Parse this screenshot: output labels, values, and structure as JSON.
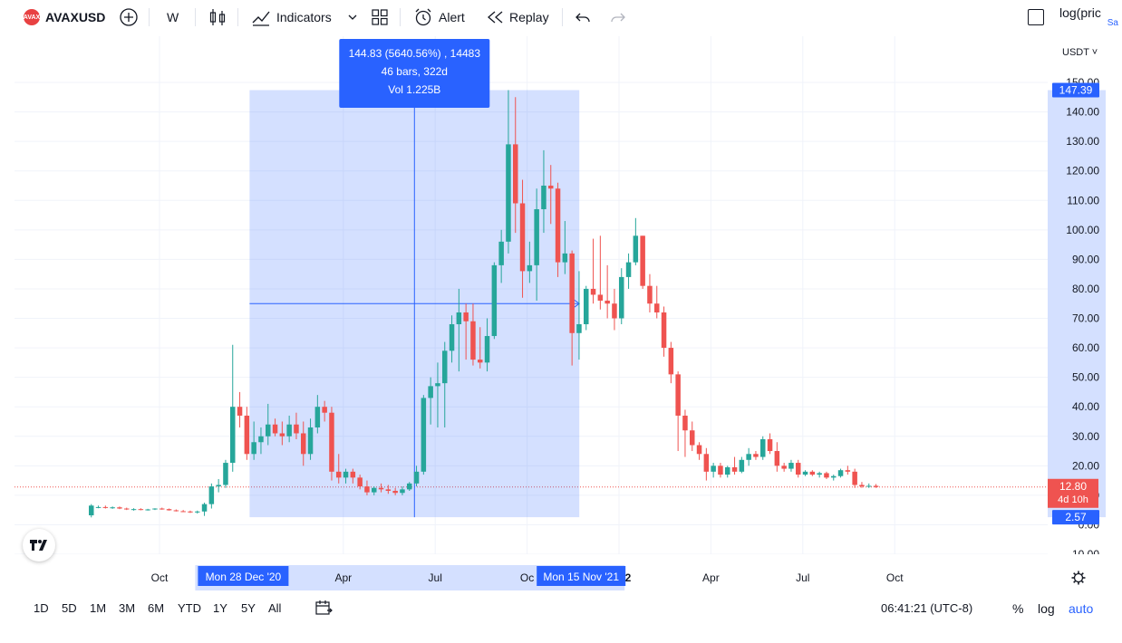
{
  "toolbar": {
    "symbol": "AVAXUSD",
    "symbol_badge": "AVAX",
    "interval": "W",
    "indicators_label": "Indicators",
    "alert_label": "Alert",
    "replay_label": "Replay",
    "log_label": "log(pric",
    "log_sub": "Sa"
  },
  "price_scale": {
    "currency": "USDT",
    "ticks": [
      "150.00",
      "140.00",
      "130.00",
      "120.00",
      "110.00",
      "100.00",
      "90.00",
      "80.00",
      "70.00",
      "60.00",
      "50.00",
      "40.00",
      "30.00",
      "20.00",
      "10.00",
      "0.00",
      "-10.00"
    ],
    "tick_values": [
      150,
      140,
      130,
      120,
      110,
      100,
      90,
      80,
      70,
      60,
      50,
      40,
      30,
      20,
      10,
      0,
      -10
    ],
    "range_top_label": "147.39",
    "range_bottom_label": "2.57",
    "current_price_label": "12.80",
    "countdown_label": "4d 10h"
  },
  "time_axis": {
    "labels": [
      {
        "text": "Oct",
        "t": 10
      },
      {
        "text": "Apr",
        "t": 36
      },
      {
        "text": "Jul",
        "t": 49
      },
      {
        "text": "Oc",
        "t": 62
      },
      {
        "text": "2022",
        "t": 75
      },
      {
        "text": "Apr",
        "t": 88
      },
      {
        "text": "Jul",
        "t": 101
      },
      {
        "text": "Oct",
        "t": 114
      }
    ],
    "range_start_label": "Mon 28 Dec '20",
    "range_end_label": "Mon 15 Nov '21"
  },
  "measurement": {
    "line1": "144.83 (5640.56%) , 14483",
    "line2": "46 bars, 322d",
    "line3": "Vol 1.225B",
    "start_price": 2.57,
    "end_price": 147.39,
    "start_bar": 23,
    "end_bar": 69,
    "crosshair_price": 75
  },
  "bottom": {
    "ranges": [
      "1D",
      "5D",
      "1M",
      "3M",
      "6M",
      "YTD",
      "1Y",
      "5Y",
      "All"
    ],
    "clock": "06:41:21 (UTC-8)",
    "percent_label": "%",
    "log_label": "log",
    "auto_label": "auto"
  },
  "colors": {
    "up": "#26a69a",
    "down": "#ef5350",
    "selection": "#2962ff",
    "text": "#131722",
    "grid": "#f0f3fa"
  },
  "chart_data": {
    "type": "candlestick",
    "interval": "W",
    "symbol": "AVAXUSD",
    "y_range": [
      -10,
      150
    ],
    "candles": [
      {
        "o": 3.2,
        "h": 7.0,
        "l": 2.5,
        "c": 6.5
      },
      {
        "o": 6.0,
        "h": 6.5,
        "l": 5.6,
        "c": 6.0
      },
      {
        "o": 6.0,
        "h": 6.5,
        "l": 5.5,
        "c": 5.8
      },
      {
        "o": 5.8,
        "h": 6.2,
        "l": 5.4,
        "c": 5.9
      },
      {
        "o": 5.9,
        "h": 6.2,
        "l": 5.3,
        "c": 5.5
      },
      {
        "o": 5.5,
        "h": 5.8,
        "l": 5.0,
        "c": 5.2
      },
      {
        "o": 5.2,
        "h": 5.6,
        "l": 4.8,
        "c": 5.3
      },
      {
        "o": 5.3,
        "h": 5.6,
        "l": 4.9,
        "c": 5.0
      },
      {
        "o": 5.0,
        "h": 5.4,
        "l": 4.8,
        "c": 5.2
      },
      {
        "o": 5.2,
        "h": 5.6,
        "l": 5.0,
        "c": 5.5
      },
      {
        "o": 5.5,
        "h": 5.8,
        "l": 5.1,
        "c": 5.3
      },
      {
        "o": 5.3,
        "h": 5.5,
        "l": 4.8,
        "c": 4.9
      },
      {
        "o": 4.9,
        "h": 5.2,
        "l": 4.5,
        "c": 4.6
      },
      {
        "o": 4.6,
        "h": 5.0,
        "l": 4.3,
        "c": 4.5
      },
      {
        "o": 4.5,
        "h": 4.8,
        "l": 4.0,
        "c": 4.2
      },
      {
        "o": 4.2,
        "h": 4.8,
        "l": 3.8,
        "c": 4.5
      },
      {
        "o": 4.5,
        "h": 7.5,
        "l": 3.0,
        "c": 7.0
      },
      {
        "o": 7.0,
        "h": 14.0,
        "l": 5.5,
        "c": 13.0
      },
      {
        "o": 13.0,
        "h": 15.5,
        "l": 11.0,
        "c": 13.5
      },
      {
        "o": 13.5,
        "h": 22.0,
        "l": 12.5,
        "c": 21.0
      },
      {
        "o": 21.0,
        "h": 61.0,
        "l": 18.0,
        "c": 40.0
      },
      {
        "o": 40.0,
        "h": 45.0,
        "l": 33.0,
        "c": 37.0
      },
      {
        "o": 37.0,
        "h": 40.0,
        "l": 22.0,
        "c": 24.0
      },
      {
        "o": 24.0,
        "h": 35.0,
        "l": 22.0,
        "c": 28.0
      },
      {
        "o": 28.0,
        "h": 33.0,
        "l": 24.0,
        "c": 30.0
      },
      {
        "o": 30.0,
        "h": 41.0,
        "l": 27.0,
        "c": 34.0
      },
      {
        "o": 34.0,
        "h": 36.0,
        "l": 30.0,
        "c": 31.0
      },
      {
        "o": 31.0,
        "h": 35.0,
        "l": 27.0,
        "c": 30.0
      },
      {
        "o": 30.0,
        "h": 37.0,
        "l": 28.0,
        "c": 34.0
      },
      {
        "o": 34.0,
        "h": 38.0,
        "l": 29.0,
        "c": 31.0
      },
      {
        "o": 31.0,
        "h": 35.0,
        "l": 20.0,
        "c": 24.0
      },
      {
        "o": 24.0,
        "h": 36.0,
        "l": 22.0,
        "c": 33.0
      },
      {
        "o": 33.0,
        "h": 44.0,
        "l": 31.0,
        "c": 40.0
      },
      {
        "o": 40.0,
        "h": 42.0,
        "l": 35.0,
        "c": 38.0
      },
      {
        "o": 38.0,
        "h": 40.0,
        "l": 15.0,
        "c": 18.0
      },
      {
        "o": 18.0,
        "h": 24.0,
        "l": 14.0,
        "c": 16.0
      },
      {
        "o": 16.0,
        "h": 19.0,
        "l": 14.0,
        "c": 18.0
      },
      {
        "o": 18.0,
        "h": 19.0,
        "l": 14.0,
        "c": 16.0
      },
      {
        "o": 16.0,
        "h": 17.0,
        "l": 12.0,
        "c": 13.0
      },
      {
        "o": 13.0,
        "h": 15.0,
        "l": 10.0,
        "c": 11.0
      },
      {
        "o": 11.0,
        "h": 13.0,
        "l": 10.0,
        "c": 12.5
      },
      {
        "o": 12.5,
        "h": 14.0,
        "l": 11.0,
        "c": 12.0
      },
      {
        "o": 12.0,
        "h": 13.5,
        "l": 10.5,
        "c": 11.5
      },
      {
        "o": 11.5,
        "h": 12.5,
        "l": 10.0,
        "c": 10.8
      },
      {
        "o": 10.8,
        "h": 13.0,
        "l": 10.0,
        "c": 12.0
      },
      {
        "o": 12.0,
        "h": 14.5,
        "l": 11.5,
        "c": 14.0
      },
      {
        "o": 14.0,
        "h": 20.0,
        "l": 13.0,
        "c": 18.0
      },
      {
        "o": 18.0,
        "h": 44.0,
        "l": 17.0,
        "c": 43.0
      },
      {
        "o": 43.0,
        "h": 50.0,
        "l": 34.0,
        "c": 47.0
      },
      {
        "o": 47.0,
        "h": 55.0,
        "l": 33.0,
        "c": 48.0
      },
      {
        "o": 48.0,
        "h": 62.0,
        "l": 33.0,
        "c": 59.0
      },
      {
        "o": 59.0,
        "h": 71.0,
        "l": 55.0,
        "c": 68.0
      },
      {
        "o": 68.0,
        "h": 80.0,
        "l": 52.0,
        "c": 72.0
      },
      {
        "o": 72.0,
        "h": 75.0,
        "l": 56.0,
        "c": 69.0
      },
      {
        "o": 69.0,
        "h": 75.0,
        "l": 54.0,
        "c": 56.0
      },
      {
        "o": 56.0,
        "h": 67.0,
        "l": 53.0,
        "c": 55.0
      },
      {
        "o": 55.0,
        "h": 70.0,
        "l": 52.0,
        "c": 64.0
      },
      {
        "o": 64.0,
        "h": 89.0,
        "l": 63.0,
        "c": 88.0
      },
      {
        "o": 88.0,
        "h": 100.0,
        "l": 82.0,
        "c": 96.0
      },
      {
        "o": 96.0,
        "h": 147.4,
        "l": 92.0,
        "c": 129.0
      },
      {
        "o": 129.0,
        "h": 145.0,
        "l": 99.0,
        "c": 109.0
      },
      {
        "o": 109.0,
        "h": 117.0,
        "l": 77.0,
        "c": 86.0
      },
      {
        "o": 86.0,
        "h": 96.0,
        "l": 82.0,
        "c": 88.0
      },
      {
        "o": 88.0,
        "h": 114.0,
        "l": 76.0,
        "c": 107.0
      },
      {
        "o": 107.0,
        "h": 127.0,
        "l": 99.0,
        "c": 115.0
      },
      {
        "o": 115.0,
        "h": 122.0,
        "l": 102.0,
        "c": 114.0
      },
      {
        "o": 114.0,
        "h": 116.0,
        "l": 84.0,
        "c": 89.0
      },
      {
        "o": 89.0,
        "h": 103.0,
        "l": 85.0,
        "c": 92.0
      },
      {
        "o": 92.0,
        "h": 93.0,
        "l": 54.0,
        "c": 65.0
      },
      {
        "o": 65.0,
        "h": 86.0,
        "l": 56.0,
        "c": 68.0
      },
      {
        "o": 68.0,
        "h": 81.0,
        "l": 66.0,
        "c": 80.0
      },
      {
        "o": 80.0,
        "h": 97.0,
        "l": 75.0,
        "c": 78.0
      },
      {
        "o": 78.0,
        "h": 98.0,
        "l": 73.0,
        "c": 76.0
      },
      {
        "o": 76.0,
        "h": 88.0,
        "l": 70.0,
        "c": 75.0
      },
      {
        "o": 75.0,
        "h": 80.0,
        "l": 66.0,
        "c": 70.0
      },
      {
        "o": 70.0,
        "h": 87.0,
        "l": 68.0,
        "c": 84.0
      },
      {
        "o": 84.0,
        "h": 92.0,
        "l": 80.0,
        "c": 89.0
      },
      {
        "o": 89.0,
        "h": 104.0,
        "l": 88.0,
        "c": 98.0
      },
      {
        "o": 98.0,
        "h": 98.0,
        "l": 80.0,
        "c": 81.0
      },
      {
        "o": 81.0,
        "h": 85.0,
        "l": 72.0,
        "c": 75.0
      },
      {
        "o": 75.0,
        "h": 81.0,
        "l": 70.0,
        "c": 72.0
      },
      {
        "o": 72.0,
        "h": 74.0,
        "l": 57.0,
        "c": 60.0
      },
      {
        "o": 60.0,
        "h": 62.0,
        "l": 48.0,
        "c": 51.0
      },
      {
        "o": 51.0,
        "h": 52.0,
        "l": 25.0,
        "c": 37.0
      },
      {
        "o": 37.0,
        "h": 39.0,
        "l": 23.0,
        "c": 32.0
      },
      {
        "o": 32.0,
        "h": 35.0,
        "l": 25.0,
        "c": 27.0
      },
      {
        "o": 27.0,
        "h": 28.0,
        "l": 22.0,
        "c": 24.0
      },
      {
        "o": 24.0,
        "h": 26.0,
        "l": 15.0,
        "c": 18.0
      },
      {
        "o": 18.0,
        "h": 21.0,
        "l": 16.0,
        "c": 20.0
      },
      {
        "o": 20.0,
        "h": 21.0,
        "l": 16.0,
        "c": 17.0
      },
      {
        "o": 17.0,
        "h": 20.0,
        "l": 16.0,
        "c": 19.5
      },
      {
        "o": 19.5,
        "h": 23.0,
        "l": 17.0,
        "c": 18.0
      },
      {
        "o": 18.0,
        "h": 23.0,
        "l": 17.5,
        "c": 22.0
      },
      {
        "o": 22.0,
        "h": 26.0,
        "l": 20.0,
        "c": 24.0
      },
      {
        "o": 24.0,
        "h": 25.0,
        "l": 22.0,
        "c": 23.0
      },
      {
        "o": 23.0,
        "h": 30.0,
        "l": 22.0,
        "c": 29.0
      },
      {
        "o": 29.0,
        "h": 31.0,
        "l": 24.0,
        "c": 25.0
      },
      {
        "o": 25.0,
        "h": 28.0,
        "l": 18.0,
        "c": 20.0
      },
      {
        "o": 20.0,
        "h": 21.0,
        "l": 18.0,
        "c": 19.0
      },
      {
        "o": 19.0,
        "h": 22.0,
        "l": 18.0,
        "c": 21.0
      },
      {
        "o": 21.0,
        "h": 22.0,
        "l": 16.0,
        "c": 17.0
      },
      {
        "o": 17.0,
        "h": 18.5,
        "l": 16.5,
        "c": 18.0
      },
      {
        "o": 18.0,
        "h": 18.5,
        "l": 16.5,
        "c": 17.0
      },
      {
        "o": 17.0,
        "h": 18.0,
        "l": 16.0,
        "c": 17.5
      },
      {
        "o": 17.5,
        "h": 18.0,
        "l": 15.5,
        "c": 16.0
      },
      {
        "o": 16.0,
        "h": 17.0,
        "l": 15.0,
        "c": 16.5
      },
      {
        "o": 16.5,
        "h": 19.0,
        "l": 16.0,
        "c": 18.5
      },
      {
        "o": 18.5,
        "h": 20.0,
        "l": 17.0,
        "c": 18.0
      },
      {
        "o": 18.0,
        "h": 19.0,
        "l": 12.5,
        "c": 13.5
      },
      {
        "o": 13.5,
        "h": 14.5,
        "l": 12.5,
        "c": 13.0
      },
      {
        "o": 13.0,
        "h": 14.0,
        "l": 12.5,
        "c": 13.2
      },
      {
        "o": 13.2,
        "h": 13.8,
        "l": 12.5,
        "c": 12.8
      }
    ]
  }
}
